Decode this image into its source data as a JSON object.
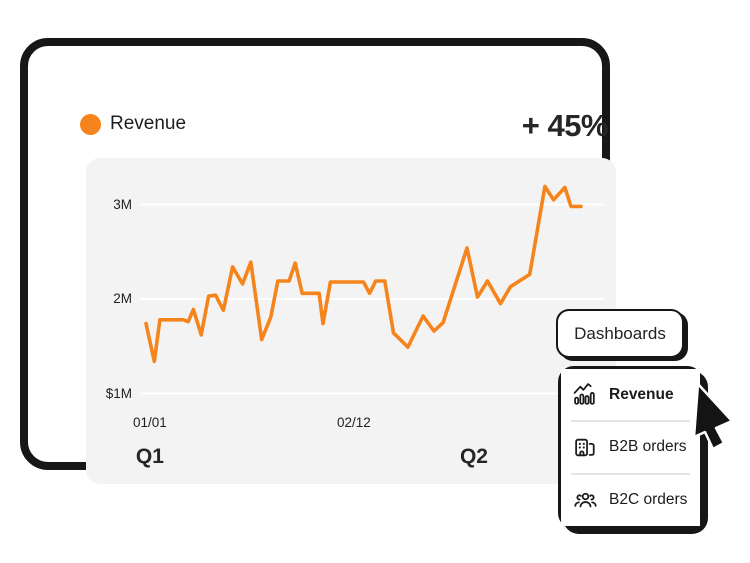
{
  "header": {
    "title": "Revenue",
    "delta": "+ 45%"
  },
  "colors": {
    "accent": "#F6841C",
    "ink": "#171717",
    "panel_bg": "#F3F3F3",
    "grid": "#FFFFFF"
  },
  "chart_data": {
    "type": "line",
    "title": "Revenue",
    "line_color": "#F6841C",
    "ylim": [
      1,
      3.4
    ],
    "grid": true,
    "legend": "none",
    "yticks": [
      {
        "label": "3M",
        "value": 3
      },
      {
        "label": "2M",
        "value": 2
      },
      {
        "label": "$1M",
        "value": 1
      }
    ],
    "xticks": [
      {
        "label": "01/01",
        "f": 0.009
      },
      {
        "label": "02/12",
        "f": 0.478
      }
    ],
    "quarters": [
      {
        "label": "Q1",
        "f": 0.009
      },
      {
        "label": "Q2",
        "f": 0.754
      }
    ],
    "points": [
      [
        0.0,
        1.74
      ],
      [
        0.019,
        1.34
      ],
      [
        0.032,
        1.78
      ],
      [
        0.086,
        1.78
      ],
      [
        0.097,
        1.76
      ],
      [
        0.109,
        1.89
      ],
      [
        0.127,
        1.62
      ],
      [
        0.144,
        2.03
      ],
      [
        0.16,
        2.04
      ],
      [
        0.178,
        1.88
      ],
      [
        0.199,
        2.34
      ],
      [
        0.222,
        2.16
      ],
      [
        0.241,
        2.39
      ],
      [
        0.266,
        1.57
      ],
      [
        0.287,
        1.81
      ],
      [
        0.303,
        2.19
      ],
      [
        0.329,
        2.19
      ],
      [
        0.343,
        2.38
      ],
      [
        0.359,
        2.06
      ],
      [
        0.398,
        2.06
      ],
      [
        0.407,
        1.74
      ],
      [
        0.424,
        2.18
      ],
      [
        0.5,
        2.18
      ],
      [
        0.514,
        2.06
      ],
      [
        0.528,
        2.19
      ],
      [
        0.549,
        2.19
      ],
      [
        0.569,
        1.64
      ],
      [
        0.576,
        1.61
      ],
      [
        0.602,
        1.49
      ],
      [
        0.637,
        1.82
      ],
      [
        0.662,
        1.66
      ],
      [
        0.683,
        1.75
      ],
      [
        0.738,
        2.54
      ],
      [
        0.762,
        2.02
      ],
      [
        0.785,
        2.19
      ],
      [
        0.815,
        1.95
      ],
      [
        0.838,
        2.13
      ],
      [
        0.882,
        2.26
      ],
      [
        0.917,
        3.19
      ],
      [
        0.937,
        3.05
      ],
      [
        0.963,
        3.18
      ],
      [
        0.977,
        2.98
      ],
      [
        1.0,
        2.98
      ]
    ]
  },
  "dropdown": {
    "trigger": "Dashboards",
    "items": [
      {
        "label": "Revenue",
        "icon": "trend-chart-icon",
        "active": true
      },
      {
        "label": "B2B orders",
        "icon": "buildings-icon",
        "active": false
      },
      {
        "label": "B2C orders",
        "icon": "people-group-icon",
        "active": false
      }
    ]
  }
}
